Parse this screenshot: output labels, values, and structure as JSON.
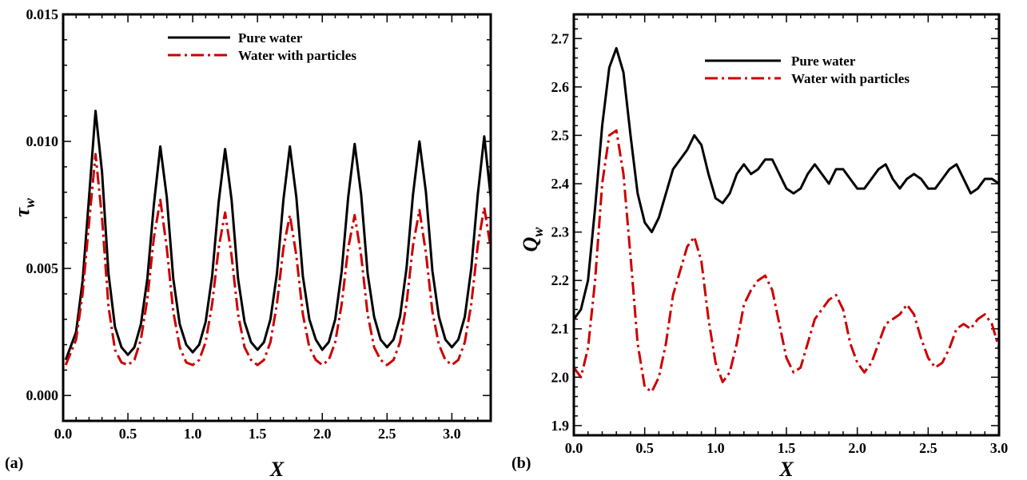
{
  "chart_data": [
    {
      "type": "line",
      "panel_label": "(a)",
      "xlabel": "X",
      "ylabel": "τ",
      "ylabel_sub": "w",
      "xlim": [
        0.0,
        3.3
      ],
      "ylim": [
        -0.001,
        0.015
      ],
      "xticks": [
        "0.0",
        "0.5",
        "1.0",
        "1.5",
        "2.0",
        "2.5",
        "3.0"
      ],
      "yticks": [
        "0.000",
        "0.005",
        "0.010",
        "0.015"
      ],
      "legend_position": "top-center",
      "series": [
        {
          "name": "Pure water",
          "color": "#000000",
          "dash": "solid",
          "x": [
            0.02,
            0.1,
            0.15,
            0.2,
            0.25,
            0.3,
            0.35,
            0.4,
            0.45,
            0.5,
            0.55,
            0.6,
            0.65,
            0.7,
            0.75,
            0.8,
            0.85,
            0.9,
            0.95,
            1.0,
            1.05,
            1.1,
            1.15,
            1.2,
            1.25,
            1.3,
            1.35,
            1.4,
            1.45,
            1.5,
            1.55,
            1.6,
            1.65,
            1.7,
            1.75,
            1.8,
            1.85,
            1.9,
            1.95,
            2.0,
            2.05,
            2.1,
            2.15,
            2.2,
            2.25,
            2.3,
            2.35,
            2.4,
            2.45,
            2.5,
            2.55,
            2.6,
            2.65,
            2.7,
            2.75,
            2.8,
            2.85,
            2.9,
            2.95,
            3.0,
            3.05,
            3.1,
            3.15,
            3.2,
            3.25,
            3.3
          ],
          "y": [
            0.0014,
            0.0025,
            0.0045,
            0.0078,
            0.0112,
            0.0088,
            0.0048,
            0.0027,
            0.0019,
            0.0016,
            0.0019,
            0.0028,
            0.0046,
            0.0075,
            0.0098,
            0.0078,
            0.0046,
            0.0028,
            0.002,
            0.0017,
            0.002,
            0.0029,
            0.0047,
            0.0076,
            0.0097,
            0.0077,
            0.0046,
            0.0029,
            0.0021,
            0.0018,
            0.0021,
            0.003,
            0.0048,
            0.0077,
            0.0098,
            0.0078,
            0.0047,
            0.003,
            0.0022,
            0.0018,
            0.0021,
            0.003,
            0.0049,
            0.0078,
            0.0099,
            0.0079,
            0.0048,
            0.0031,
            0.0022,
            0.0019,
            0.0022,
            0.0031,
            0.005,
            0.0079,
            0.01,
            0.008,
            0.0049,
            0.0031,
            0.0022,
            0.0019,
            0.0022,
            0.0031,
            0.005,
            0.0079,
            0.0102,
            0.0078
          ]
        },
        {
          "name": "Water with particles",
          "color": "#cc0000",
          "dash": "dash-dot",
          "x": [
            0.02,
            0.1,
            0.15,
            0.2,
            0.25,
            0.3,
            0.35,
            0.4,
            0.45,
            0.5,
            0.55,
            0.6,
            0.65,
            0.7,
            0.75,
            0.8,
            0.85,
            0.9,
            0.95,
            1.0,
            1.05,
            1.1,
            1.15,
            1.2,
            1.25,
            1.3,
            1.35,
            1.4,
            1.45,
            1.5,
            1.55,
            1.6,
            1.65,
            1.7,
            1.75,
            1.8,
            1.85,
            1.9,
            1.95,
            2.0,
            2.05,
            2.1,
            2.15,
            2.2,
            2.25,
            2.3,
            2.35,
            2.4,
            2.45,
            2.5,
            2.55,
            2.6,
            2.65,
            2.7,
            2.75,
            2.8,
            2.85,
            2.9,
            2.95,
            3.0,
            3.05,
            3.1,
            3.15,
            3.2,
            3.25,
            3.3
          ],
          "y": [
            0.0012,
            0.0022,
            0.004,
            0.0068,
            0.0095,
            0.007,
            0.0035,
            0.0018,
            0.0013,
            0.0012,
            0.0014,
            0.0022,
            0.0038,
            0.0062,
            0.0077,
            0.0058,
            0.0033,
            0.0019,
            0.0013,
            0.0012,
            0.0014,
            0.0021,
            0.0036,
            0.0058,
            0.0072,
            0.0055,
            0.0032,
            0.0019,
            0.0014,
            0.0012,
            0.0014,
            0.0021,
            0.0036,
            0.0058,
            0.0071,
            0.0055,
            0.0032,
            0.0019,
            0.0014,
            0.0012,
            0.0014,
            0.0021,
            0.0036,
            0.0058,
            0.0071,
            0.0055,
            0.0032,
            0.0019,
            0.0014,
            0.0012,
            0.0014,
            0.0021,
            0.0036,
            0.0059,
            0.0073,
            0.0056,
            0.0033,
            0.002,
            0.0014,
            0.0012,
            0.0014,
            0.0021,
            0.0036,
            0.0059,
            0.0074,
            0.0058
          ]
        }
      ]
    },
    {
      "type": "line",
      "panel_label": "(b)",
      "xlabel": "X",
      "ylabel": "Q",
      "ylabel_sub": "w",
      "xlim": [
        0.0,
        3.0
      ],
      "ylim": [
        1.88,
        2.75
      ],
      "xticks": [
        "0.0",
        "0.5",
        "1.0",
        "1.5",
        "2.0",
        "2.5",
        "3.0"
      ],
      "yticks": [
        "1.9",
        "2.0",
        "2.1",
        "2.2",
        "2.3",
        "2.4",
        "2.5",
        "2.6",
        "2.7"
      ],
      "legend_position": "top-right",
      "series": [
        {
          "name": "Pure water",
          "color": "#000000",
          "dash": "solid",
          "x": [
            0.0,
            0.05,
            0.1,
            0.15,
            0.2,
            0.25,
            0.3,
            0.35,
            0.4,
            0.45,
            0.5,
            0.55,
            0.6,
            0.65,
            0.7,
            0.75,
            0.8,
            0.85,
            0.9,
            0.95,
            1.0,
            1.05,
            1.1,
            1.15,
            1.2,
            1.25,
            1.3,
            1.35,
            1.4,
            1.45,
            1.5,
            1.55,
            1.6,
            1.65,
            1.7,
            1.75,
            1.8,
            1.85,
            1.9,
            1.95,
            2.0,
            2.05,
            2.1,
            2.15,
            2.2,
            2.25,
            2.3,
            2.35,
            2.4,
            2.45,
            2.5,
            2.55,
            2.6,
            2.65,
            2.7,
            2.75,
            2.8,
            2.85,
            2.9,
            2.95,
            3.0
          ],
          "y": [
            2.12,
            2.14,
            2.2,
            2.35,
            2.52,
            2.64,
            2.68,
            2.63,
            2.5,
            2.38,
            2.32,
            2.3,
            2.33,
            2.38,
            2.43,
            2.45,
            2.47,
            2.5,
            2.48,
            2.42,
            2.37,
            2.36,
            2.38,
            2.42,
            2.44,
            2.42,
            2.43,
            2.45,
            2.45,
            2.42,
            2.39,
            2.38,
            2.39,
            2.42,
            2.44,
            2.42,
            2.4,
            2.43,
            2.43,
            2.41,
            2.39,
            2.39,
            2.41,
            2.43,
            2.44,
            2.41,
            2.39,
            2.41,
            2.42,
            2.41,
            2.39,
            2.39,
            2.41,
            2.43,
            2.44,
            2.41,
            2.38,
            2.39,
            2.41,
            2.41,
            2.4
          ]
        },
        {
          "name": "Water with particles",
          "color": "#cc0000",
          "dash": "dash-dot",
          "x": [
            0.0,
            0.05,
            0.1,
            0.15,
            0.2,
            0.25,
            0.3,
            0.35,
            0.4,
            0.45,
            0.5,
            0.55,
            0.6,
            0.65,
            0.7,
            0.75,
            0.8,
            0.85,
            0.9,
            0.95,
            1.0,
            1.05,
            1.1,
            1.15,
            1.2,
            1.25,
            1.3,
            1.35,
            1.4,
            1.45,
            1.5,
            1.55,
            1.6,
            1.65,
            1.7,
            1.75,
            1.8,
            1.85,
            1.9,
            1.95,
            2.0,
            2.05,
            2.1,
            2.15,
            2.2,
            2.25,
            2.3,
            2.35,
            2.4,
            2.45,
            2.5,
            2.55,
            2.6,
            2.65,
            2.7,
            2.75,
            2.8,
            2.85,
            2.9,
            2.95,
            3.0
          ],
          "y": [
            2.02,
            2.0,
            2.06,
            2.2,
            2.4,
            2.5,
            2.51,
            2.42,
            2.25,
            2.07,
            1.98,
            1.97,
            2.0,
            2.07,
            2.17,
            2.22,
            2.27,
            2.29,
            2.24,
            2.12,
            2.03,
            1.99,
            2.01,
            2.07,
            2.15,
            2.18,
            2.2,
            2.21,
            2.18,
            2.11,
            2.04,
            2.01,
            2.02,
            2.07,
            2.12,
            2.14,
            2.16,
            2.17,
            2.14,
            2.07,
            2.03,
            2.01,
            2.03,
            2.07,
            2.11,
            2.12,
            2.13,
            2.15,
            2.13,
            2.08,
            2.04,
            2.02,
            2.03,
            2.06,
            2.1,
            2.11,
            2.1,
            2.12,
            2.13,
            2.11,
            2.06
          ]
        }
      ]
    }
  ]
}
